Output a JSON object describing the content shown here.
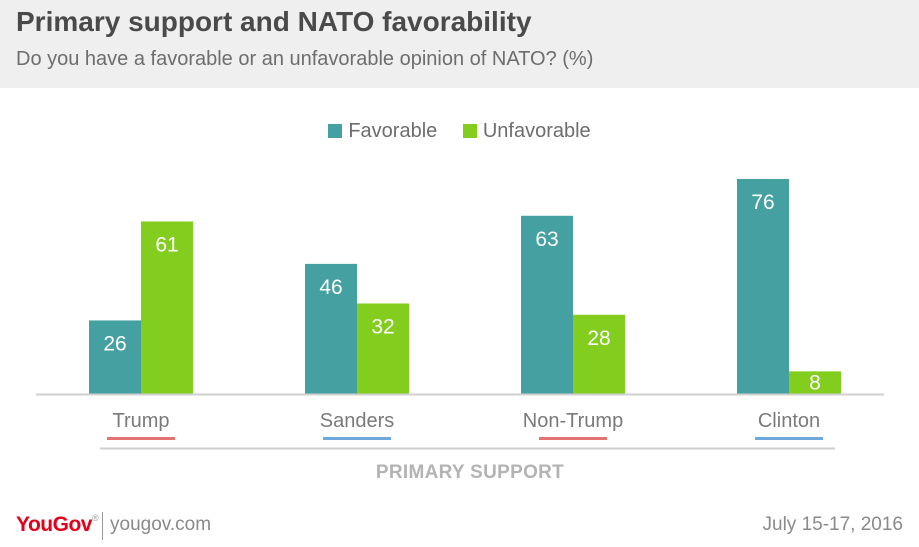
{
  "header": {
    "title": "Primary support and NATO favorability",
    "subtitle": "Do you have a favorable or an unfavorable opinion of NATO? (%)"
  },
  "footer": {
    "brand": "YouGov",
    "site": "yougov.com",
    "date": "July 15-17, 2016"
  },
  "chart_data": {
    "type": "bar",
    "title": "Primary support and NATO favorability",
    "subtitle": "Do you have a favorable or an unfavorable opinion of NATO? (%)",
    "xlabel": "PRIMARY SUPPORT",
    "ylabel": "",
    "categories": [
      "Trump",
      "Sanders",
      "Non-Trump",
      "Clinton"
    ],
    "category_underline_colors": [
      "#e57373",
      "#6fa8dc",
      "#e57373",
      "#6fa8dc"
    ],
    "series": [
      {
        "name": "Favorable",
        "color": "#45a0a1",
        "values": [
          26,
          46,
          63,
          76
        ]
      },
      {
        "name": "Unfavorable",
        "color": "#82cd1e",
        "values": [
          61,
          32,
          28,
          8
        ]
      }
    ],
    "ylim": [
      0,
      76
    ],
    "grid": false,
    "legend_position": "top-center"
  }
}
